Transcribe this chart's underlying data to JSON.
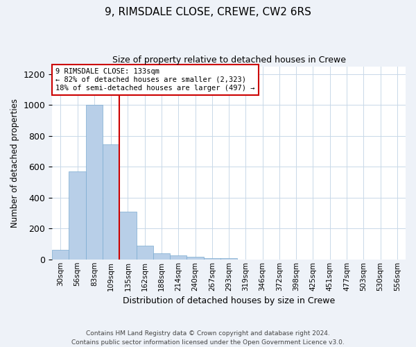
{
  "title": "9, RIMSDALE CLOSE, CREWE, CW2 6RS",
  "subtitle": "Size of property relative to detached houses in Crewe",
  "xlabel": "Distribution of detached houses by size in Crewe",
  "ylabel": "Number of detached properties",
  "categories": [
    "30sqm",
    "56sqm",
    "83sqm",
    "109sqm",
    "135sqm",
    "162sqm",
    "188sqm",
    "214sqm",
    "240sqm",
    "267sqm",
    "293sqm",
    "319sqm",
    "346sqm",
    "372sqm",
    "398sqm",
    "425sqm",
    "451sqm",
    "477sqm",
    "503sqm",
    "530sqm",
    "556sqm"
  ],
  "values": [
    60,
    570,
    1000,
    745,
    310,
    90,
    40,
    25,
    15,
    10,
    10,
    0,
    0,
    0,
    0,
    0,
    0,
    0,
    0,
    0,
    0
  ],
  "bar_color": "#b8cfe8",
  "bar_edge_color": "#7aaad0",
  "vline_x_index": 4,
  "vline_color": "#cc0000",
  "annotation_text": "9 RIMSDALE CLOSE: 133sqm\n← 82% of detached houses are smaller (2,323)\n18% of semi-detached houses are larger (497) →",
  "annotation_box_color": "#ffffff",
  "annotation_box_edge_color": "#cc0000",
  "ylim": [
    0,
    1250
  ],
  "yticks": [
    0,
    200,
    400,
    600,
    800,
    1000,
    1200
  ],
  "footer": "Contains HM Land Registry data © Crown copyright and database right 2024.\nContains public sector information licensed under the Open Government Licence v3.0.",
  "bg_color": "#eef2f8",
  "plot_bg_color": "#ffffff",
  "grid_color": "#c8d8e8"
}
